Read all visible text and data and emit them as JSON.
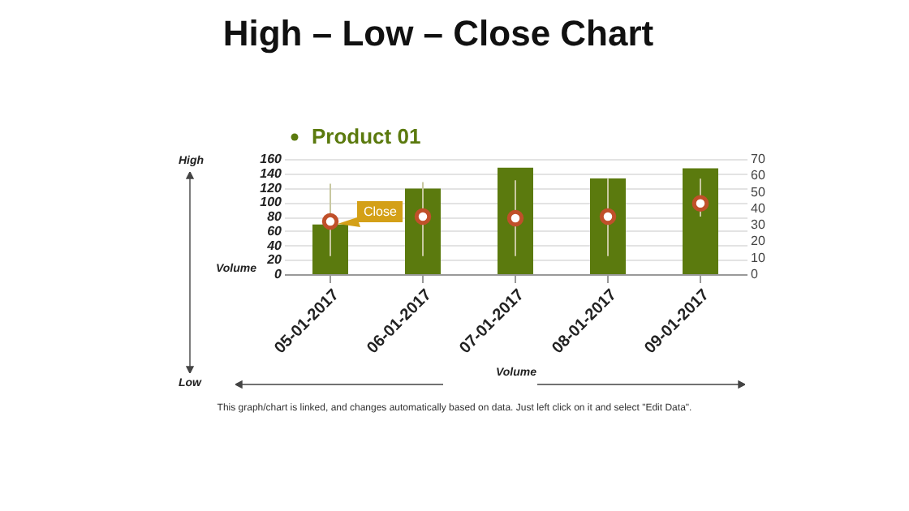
{
  "chart_data": {
    "type": "bar",
    "title": "High – Low – Close Chart",
    "xlabel": "Volume",
    "ylabel": "Volume",
    "categories": [
      "05-01-2017",
      "06-01-2017",
      "07-01-2017",
      "08-01-2017",
      "09-01-2017"
    ],
    "series": [
      {
        "name": "Product 01",
        "color": "#5b7a0e",
        "values": [
          69,
          119,
          148,
          133,
          147
        ]
      },
      {
        "type": "scatter",
        "axis": "y2",
        "color": "#c0502a",
        "values": [
          32,
          35,
          34,
          35,
          43
        ],
        "errors": [
          [
            11,
            55
          ],
          [
            11,
            56
          ],
          [
            11,
            57
          ],
          [
            11,
            58
          ],
          [
            35,
            58
          ]
        ]
      }
    ],
    "ylim": [
      0,
      160
    ],
    "yticks": [
      0,
      20,
      40,
      60,
      80,
      100,
      120,
      140,
      160
    ],
    "y2lim": [
      0,
      70
    ],
    "y2ticks": [
      0,
      10,
      20,
      30,
      40,
      50,
      60,
      70
    ],
    "grid": "y",
    "legend": "top",
    "marker": "circle",
    "annotations": [
      "High",
      "Low",
      "Close",
      "This graph/chart is linked, and changes automatically based on data. Just left click on it and select \"Edit Data\"."
    ]
  }
}
